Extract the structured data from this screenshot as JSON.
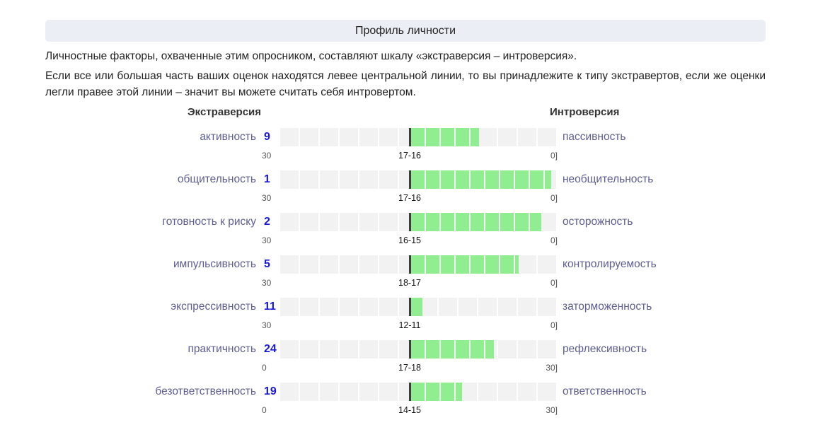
{
  "header": {
    "title": "Профиль личности"
  },
  "intro": {
    "p1": "Личностные факторы, охваченные этим опросником, составляют шкалу «экстраверсия – интроверсия».",
    "p2": "Если все или большая часть ваших оценок находятся левее центральной линии, то вы принадлежите к типу экстравертов, если же оценки легли правее этой линии – значит вы можете считать себя интровертом."
  },
  "columns": {
    "left": "Экстраверсия",
    "right": "Интроверсия"
  },
  "chart_data": {
    "type": "bar",
    "scale_segments": 30,
    "fill_color": "#90ee90",
    "rows": [
      {
        "left_label": "активность",
        "score": "9",
        "right_label": "пассивность",
        "scale_left": "30",
        "center": "17-16",
        "scale_right": "0]",
        "from_seg": 15,
        "to_seg": 22
      },
      {
        "left_label": "общительность",
        "score": "1",
        "right_label": "необщительность",
        "scale_left": "30",
        "center": "17-16",
        "scale_right": "0]",
        "from_seg": 15,
        "to_seg": 29.3
      },
      {
        "left_label": "готовность к риску",
        "score": "2",
        "right_label": "осторожность",
        "scale_left": "30",
        "center": "16-15",
        "scale_right": "0]",
        "from_seg": 15,
        "to_seg": 28.3
      },
      {
        "left_label": "импульсивность",
        "score": "5",
        "right_label": "контролируемость",
        "scale_left": "30",
        "center": "18-17",
        "scale_right": "0]",
        "from_seg": 15,
        "to_seg": 26
      },
      {
        "left_label": "экспрессивность",
        "score": "11",
        "right_label": "заторможенность",
        "scale_left": "30",
        "center": "12-11",
        "scale_right": "0]",
        "from_seg": 15,
        "to_seg": 16.3
      },
      {
        "left_label": "практичность",
        "score": "24",
        "right_label": "рефлексивность",
        "scale_left": "0",
        "center": "17-18",
        "scale_right": "30]",
        "from_seg": 15,
        "to_seg": 23.5
      },
      {
        "left_label": "безответственность",
        "score": "19",
        "right_label": "ответственность",
        "scale_left": "0",
        "center": "14-15",
        "scale_right": "30]",
        "from_seg": 15,
        "to_seg": 20.3
      }
    ]
  }
}
